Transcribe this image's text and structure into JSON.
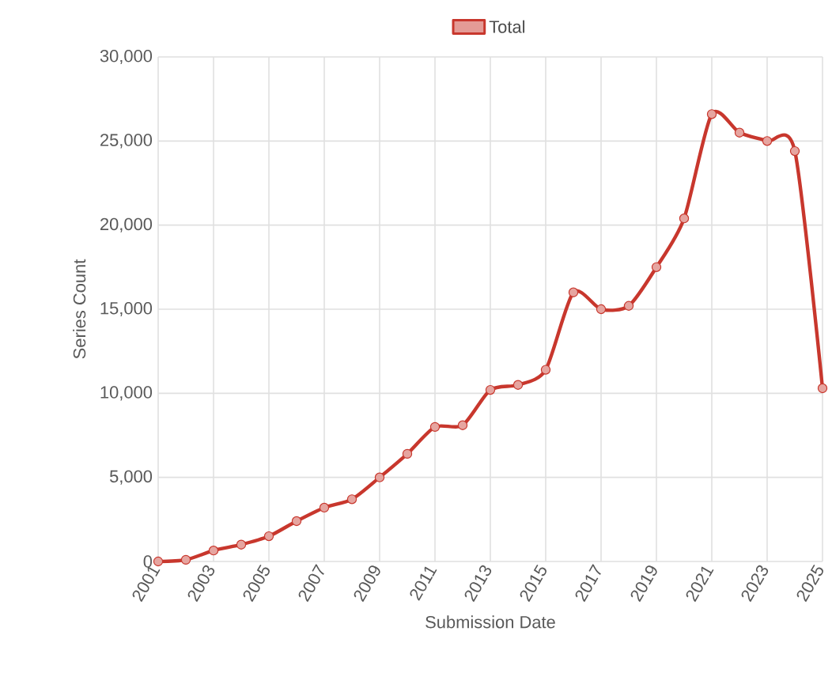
{
  "chart_data": {
    "type": "line",
    "xlabel": "Submission Date",
    "ylabel": "Series Count",
    "x": [
      2001,
      2002,
      2003,
      2004,
      2005,
      2006,
      2007,
      2008,
      2009,
      2010,
      2011,
      2012,
      2013,
      2014,
      2015,
      2016,
      2017,
      2018,
      2019,
      2020,
      2021,
      2022,
      2023,
      2024,
      2025
    ],
    "series": [
      {
        "name": "Total",
        "color": "#c8372d",
        "values": [
          0,
          100,
          650,
          1000,
          1500,
          2400,
          3200,
          3700,
          5000,
          6400,
          8000,
          8100,
          10200,
          10500,
          11400,
          16000,
          15000,
          15200,
          17500,
          20400,
          26600,
          25500,
          25000,
          24400,
          10300
        ]
      }
    ],
    "xlim": [
      2001,
      2025
    ],
    "xticks": [
      2001,
      2003,
      2005,
      2007,
      2009,
      2011,
      2013,
      2015,
      2017,
      2019,
      2021,
      2023,
      2025
    ],
    "ylim": [
      0,
      30000
    ],
    "yticks": [
      {
        "value": 0,
        "label": "0"
      },
      {
        "value": 5000,
        "label": "5,000"
      },
      {
        "value": 10000,
        "label": "10,000"
      },
      {
        "value": 15000,
        "label": "15,000"
      },
      {
        "value": 20000,
        "label": "20,000"
      },
      {
        "value": 25000,
        "label": "25,000"
      },
      {
        "value": 30000,
        "label": "30,000"
      }
    ],
    "grid": true,
    "legend": "top",
    "marker": "circle",
    "line_style": "solid"
  }
}
